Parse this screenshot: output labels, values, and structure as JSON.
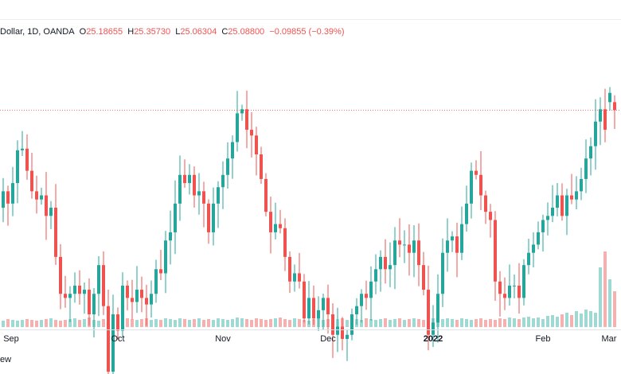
{
  "legend": {
    "symbol": "Dollar, 1D, OANDA",
    "o_label": "O",
    "o_value": "25.18655",
    "h_label": "H",
    "h_value": "25.35730",
    "l_label": "L",
    "l_value": "25.06304",
    "c_label": "C",
    "c_value": "25.08800",
    "change": "−0.09855 (−0.39%)"
  },
  "footer": {
    "text": "ew"
  },
  "colors": {
    "up": "#26a69a",
    "down": "#ef5350",
    "vol_up": "#9fd9d3",
    "vol_down": "#f5b1b0",
    "last_line": "#ef5350"
  },
  "chart_data": {
    "type": "candlestick",
    "title": "Dollar, 1D, OANDA",
    "x_ticks": [
      {
        "label": "Sep",
        "index": 3,
        "bold": false
      },
      {
        "label": "Oct",
        "index": 26,
        "bold": false
      },
      {
        "label": "Nov",
        "index": 48,
        "bold": false
      },
      {
        "label": "Dec",
        "index": 70,
        "bold": false
      },
      {
        "label": "2022",
        "index": 92,
        "bold": true
      },
      {
        "label": "Feb",
        "index": 115,
        "bold": false
      },
      {
        "label": "Mar",
        "index": 134,
        "bold": false
      }
    ],
    "last_price": 25.088,
    "ylim": [
      22.6,
      25.85
    ],
    "volume_max": 100,
    "closes": [
      23.95,
      23.9,
      24.1,
      23.95,
      24.2,
      24.6,
      24.62,
      24.35,
      24.1,
      24.0,
      24.05,
      23.8,
      23.9,
      23.3,
      22.85,
      22.8,
      22.85,
      22.95,
      22.85,
      22.9,
      22.6,
      22.85,
      23.2,
      22.7,
      21.9,
      22.6,
      22.4,
      22.95,
      22.8,
      22.75,
      22.9,
      22.8,
      22.72,
      22.85,
      23.15,
      23.1,
      23.5,
      23.6,
      23.95,
      24.3,
      24.2,
      24.3,
      24.05,
      24.1,
      23.95,
      23.6,
      23.95,
      24.15,
      24.3,
      24.5,
      24.7,
      25.05,
      25.1,
      24.85,
      24.78,
      24.55,
      24.25,
      23.85,
      23.6,
      23.7,
      23.65,
      23.3,
      23.0,
      23.1,
      23.0,
      22.55,
      22.8,
      22.55,
      22.65,
      22.8,
      22.6,
      22.35,
      22.45,
      22.3,
      22.35,
      22.6,
      22.7,
      22.85,
      22.8,
      23.0,
      23.15,
      23.3,
      23.15,
      23.2,
      23.5,
      23.45,
      23.45,
      23.35,
      23.5,
      23.2,
      22.9,
      22.35,
      22.5,
      22.85,
      23.35,
      23.5,
      23.55,
      23.35,
      23.7,
      23.95,
      24.35,
      24.3,
      24.05,
      23.85,
      23.75,
      23.0,
      22.85,
      22.8,
      22.95,
      22.95,
      22.8,
      23.2,
      23.35,
      23.45,
      23.6,
      23.75,
      23.8,
      23.9,
      24.05,
      23.8,
      24.05,
      24.0,
      24.1,
      24.25,
      24.5,
      24.65,
      24.95,
      25.1,
      24.85,
      25.3,
      25.09
    ],
    "opens": [
      23.95,
      23.95,
      23.9,
      24.1,
      23.95,
      24.2,
      24.6,
      24.62,
      24.35,
      24.1,
      24.0,
      24.05,
      23.8,
      23.9,
      23.3,
      22.85,
      22.8,
      22.85,
      22.95,
      22.85,
      22.9,
      22.6,
      22.85,
      23.2,
      22.7,
      21.9,
      22.6,
      22.4,
      22.95,
      22.8,
      22.75,
      22.9,
      22.8,
      22.72,
      22.85,
      23.15,
      23.1,
      23.5,
      23.6,
      23.95,
      24.3,
      24.2,
      24.3,
      24.05,
      24.1,
      23.95,
      23.6,
      23.95,
      24.15,
      24.3,
      24.5,
      24.7,
      25.05,
      25.1,
      24.85,
      24.78,
      24.55,
      24.25,
      23.85,
      23.6,
      23.7,
      23.65,
      23.3,
      23.0,
      23.1,
      23.0,
      22.55,
      22.8,
      22.55,
      22.65,
      22.8,
      22.6,
      22.35,
      22.45,
      22.3,
      22.35,
      22.6,
      22.7,
      22.85,
      22.8,
      23.0,
      23.15,
      23.3,
      23.15,
      23.2,
      23.5,
      23.45,
      23.45,
      23.35,
      23.5,
      23.2,
      22.9,
      22.35,
      22.5,
      22.85,
      23.35,
      23.5,
      23.55,
      23.35,
      23.7,
      23.95,
      24.35,
      24.3,
      24.05,
      23.85,
      23.75,
      23.0,
      22.85,
      22.8,
      22.95,
      22.95,
      22.8,
      23.2,
      23.35,
      23.45,
      23.6,
      23.75,
      23.8,
      23.9,
      24.05,
      23.8,
      24.05,
      24.0,
      24.1,
      24.25,
      24.5,
      24.65,
      24.95,
      25.1,
      25.187,
      25.187
    ],
    "volumes": [
      8,
      9,
      8,
      10,
      9,
      8,
      9,
      10,
      9,
      8,
      9,
      10,
      11,
      9,
      8,
      9,
      10,
      11,
      9,
      10,
      12,
      9,
      8,
      10,
      11,
      9,
      10,
      9,
      11,
      10,
      9,
      10,
      11,
      9,
      10,
      9,
      11,
      10,
      9,
      11,
      10,
      9,
      10,
      11,
      9,
      10,
      9,
      11,
      10,
      9,
      10,
      12,
      11,
      10,
      9,
      11,
      10,
      9,
      10,
      11,
      12,
      10,
      9,
      11,
      10,
      9,
      8,
      10,
      11,
      9,
      10,
      9,
      10,
      11,
      9,
      8,
      10,
      9,
      11,
      10,
      9,
      10,
      11,
      9,
      10,
      11,
      9,
      10,
      11,
      10,
      9,
      10,
      11,
      9,
      10,
      11,
      10,
      9,
      11,
      10,
      9,
      10,
      11,
      9,
      10,
      9,
      11,
      10,
      12,
      11,
      10,
      12,
      13,
      11,
      12,
      10,
      14,
      15,
      13,
      16,
      18,
      15,
      20,
      17,
      22,
      20,
      18,
      75,
      95,
      60,
      45
    ]
  }
}
